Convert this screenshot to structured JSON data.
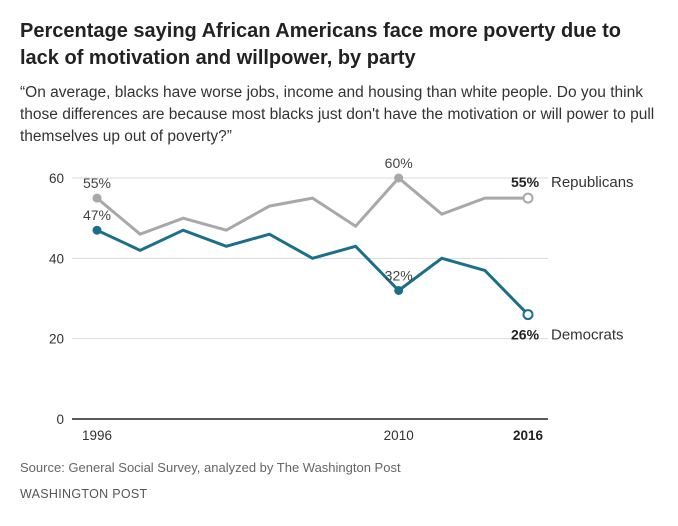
{
  "header": {
    "title": "Percentage saying African Americans face more poverty due to lack of motivation and willpower, by party",
    "subtitle": "“On average, blacks have worse jobs, income and housing than white people. Do you think those differences are because most blacks just don't have the motivation or will power to pull themselves up out of poverty?”"
  },
  "chart_data": {
    "type": "line",
    "title": "Percentage saying African Americans face more poverty due to lack of motivation and willpower, by party",
    "xlabel": "",
    "ylabel": "",
    "ylim": [
      0,
      60
    ],
    "xlim": [
      1996,
      2016
    ],
    "yticks": [
      "0",
      "20",
      "40",
      "60"
    ],
    "xticks": [
      {
        "value": 1996,
        "label": "1996",
        "bold": false
      },
      {
        "value": 2010,
        "label": "2010",
        "bold": false
      },
      {
        "value": 2016,
        "label": "2016",
        "bold": true
      }
    ],
    "x": [
      1996,
      1998,
      2000,
      2002,
      2004,
      2006,
      2008,
      2010,
      2012,
      2014,
      2016
    ],
    "series": [
      {
        "name": "Republicans",
        "color": "#a8a8a8",
        "values": [
          55,
          46,
          50,
          47,
          53,
          55,
          48,
          60,
          51,
          55,
          55
        ],
        "annotations": [
          {
            "index": 0,
            "text": "55%"
          },
          {
            "index": 7,
            "text": "60%"
          }
        ],
        "end_value_label": "55%"
      },
      {
        "name": "Democrats",
        "color": "#1b6f89",
        "values": [
          47,
          42,
          47,
          43,
          46,
          40,
          43,
          32,
          40,
          37,
          26
        ],
        "annotations": [
          {
            "index": 0,
            "text": "47%"
          },
          {
            "index": 7,
            "text": "32%"
          }
        ],
        "end_value_label": "26%"
      }
    ]
  },
  "footer": {
    "source": "Source: General Social Survey, analyzed by The Washington Post",
    "brand": "WASHINGTON POST"
  }
}
